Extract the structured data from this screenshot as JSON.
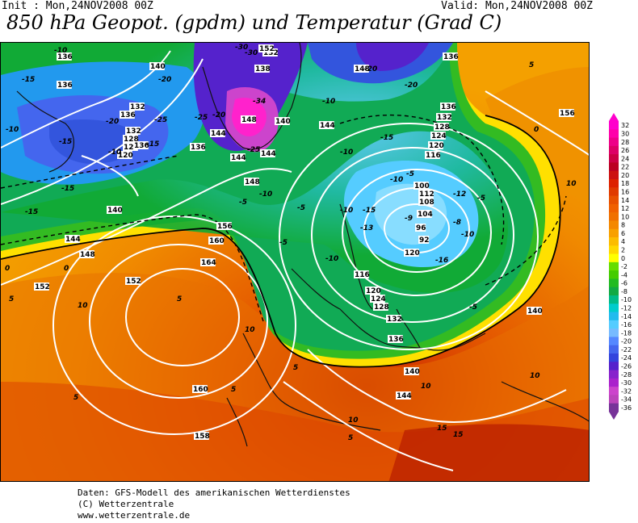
{
  "header": {
    "init": "Init : Mon,24NOV2008 00Z",
    "valid": "Valid: Mon,24NOV2008 00Z",
    "title": "850 hPa Geopot. (gpdm) und Temperatur (Grad C)"
  },
  "footer": {
    "line1": "Daten: GFS-Modell des amerikanischen Wetterdienstes",
    "line2": "(C) Wetterzentrale",
    "line3": "www.wetterzentrale.de"
  },
  "colorscale": {
    "labels": [
      "32",
      "30",
      "28",
      "26",
      "24",
      "22",
      "20",
      "18",
      "16",
      "14",
      "12",
      "10",
      "8",
      "6",
      "4",
      "2",
      "0",
      "-2",
      "-4",
      "-6",
      "-8",
      "-10",
      "-12",
      "-14",
      "-16",
      "-18",
      "-20",
      "-22",
      "-24",
      "-26",
      "-28",
      "-30",
      "-32",
      "-34",
      "-36"
    ],
    "colors": [
      "#ff00cc",
      "#ff00aa",
      "#ee0088",
      "#dd0066",
      "#cc0044",
      "#bb0022",
      "#cc1111",
      "#dd2200",
      "#e03a00",
      "#e85000",
      "#f06000",
      "#f07000",
      "#f48800",
      "#f8a000",
      "#fcbc00",
      "#ffd800",
      "#ffff00",
      "#66dd00",
      "#44cc00",
      "#22bb22",
      "#11aa44",
      "#00bb88",
      "#00cccc",
      "#22bbee",
      "#55ccff",
      "#77bbff",
      "#5588ff",
      "#4466ee",
      "#3344dd",
      "#5522cc",
      "#8822cc",
      "#aa22cc",
      "#cc44cc",
      "#bb44bb",
      "#773399"
    ]
  },
  "map_labels": {
    "geopotential": [
      "136",
      "140",
      "136",
      "132",
      "128",
      "124",
      "120",
      "136",
      "144",
      "148",
      "152",
      "152",
      "156",
      "160",
      "164",
      "160",
      "158",
      "148",
      "144",
      "140",
      "136",
      "132",
      "128",
      "124",
      "120",
      "116",
      "112",
      "108",
      "104",
      "100",
      "96",
      "92",
      "120",
      "116",
      "120",
      "124",
      "128",
      "132",
      "136",
      "140",
      "144",
      "148",
      "136",
      "156",
      "140",
      "144",
      "132",
      "132",
      "138",
      "136",
      "136",
      "148",
      "140",
      "144",
      "144",
      "152"
    ],
    "temperature": [
      "-10",
      "-15",
      "-10",
      "-15",
      "-20",
      "-25",
      "-30",
      "-25",
      "-20",
      "-15",
      "-10",
      "-5",
      "0",
      "5",
      "10",
      "5",
      "10",
      "5",
      "5",
      "5",
      "10",
      "10",
      "15",
      "10",
      "5",
      "0",
      "-5",
      "-10",
      "-15",
      "-10",
      "-5",
      "-5",
      "-10",
      "-15",
      "-10",
      "-5",
      "0",
      "5",
      "10",
      "15",
      "-20",
      "-25",
      "-20",
      "-30",
      "-34",
      "-20",
      "-15",
      "-10",
      "-15",
      "-10",
      "-16",
      "-12",
      "-8",
      "-5",
      "-9",
      "-13",
      "-10"
    ]
  }
}
